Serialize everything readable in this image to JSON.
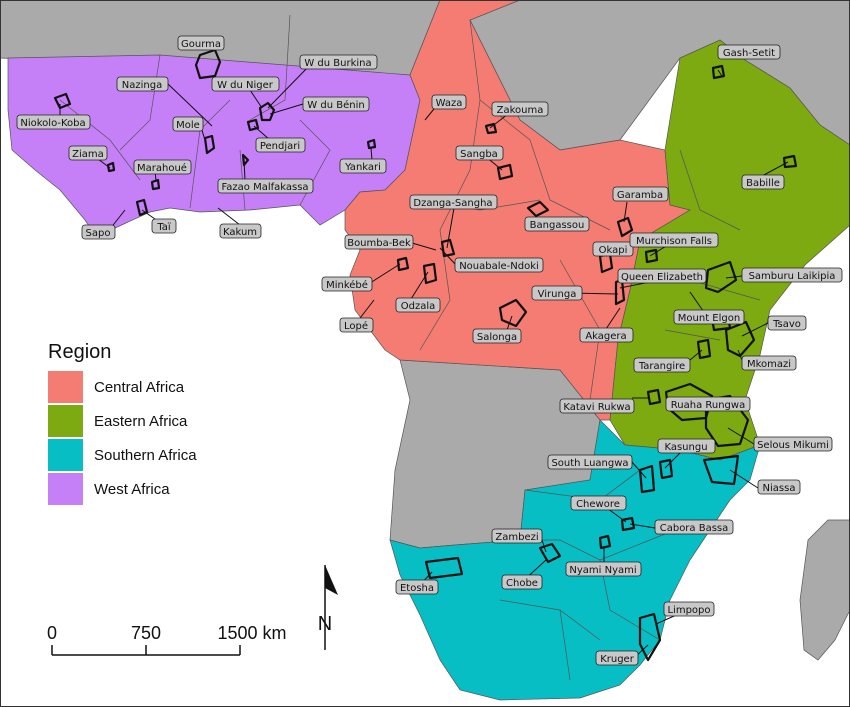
{
  "legend": {
    "title": "Region",
    "items": [
      {
        "label": "Central Africa",
        "color": "#f47c72"
      },
      {
        "label": "Eastern Africa",
        "color": "#7caa10"
      },
      {
        "label": "Southern Africa",
        "color": "#06bec4"
      },
      {
        "label": "West Africa",
        "color": "#c57ff7"
      }
    ]
  },
  "colors": {
    "other_land": "#aaaaaa",
    "sea": "#ffffff",
    "border": "#555555",
    "park_outline": "#111111"
  },
  "scale_bar": {
    "ticks": [
      "0",
      "750",
      "1500 km"
    ]
  },
  "north_arrow": {
    "label": "N"
  },
  "parks": {
    "west": [
      "Gourma",
      "W du Burkina",
      "Nazinga",
      "W du Niger",
      "Niokolo-Koba",
      "W du Bénin",
      "Mole",
      "Pendjari",
      "Ziama",
      "Marahoué",
      "Yankari",
      "Fazao Malfakassa",
      "Sapo",
      "Taï",
      "Kakum"
    ],
    "central": [
      "Waza",
      "Zakouma",
      "Sangba",
      "Dzanga-Sangha",
      "Bangassou",
      "Garamba",
      "Boumba-Bek",
      "Nouabale-Ndoki",
      "Okapi",
      "Minkébé",
      "Odzala",
      "Virunga",
      "Lopé",
      "Salonga",
      "Akagera",
      "Katavi Rukwa"
    ],
    "eastern": [
      "Gash-Setit",
      "Babille",
      "Murchison Falls",
      "Queen Elizabeth",
      "Samburu Laikipia",
      "Mount Elgon",
      "Tsavo",
      "Mkomazi",
      "Tarangire",
      "Ruaha Rungwa",
      "Selous Mikumi",
      "Kasungu",
      "Niassa"
    ],
    "southern": [
      "South Luangwa",
      "Chewore",
      "Cabora Bassa",
      "Zambezi",
      "Nyami Nyami",
      "Etosha",
      "Chobe",
      "Limpopo",
      "Kruger"
    ]
  }
}
